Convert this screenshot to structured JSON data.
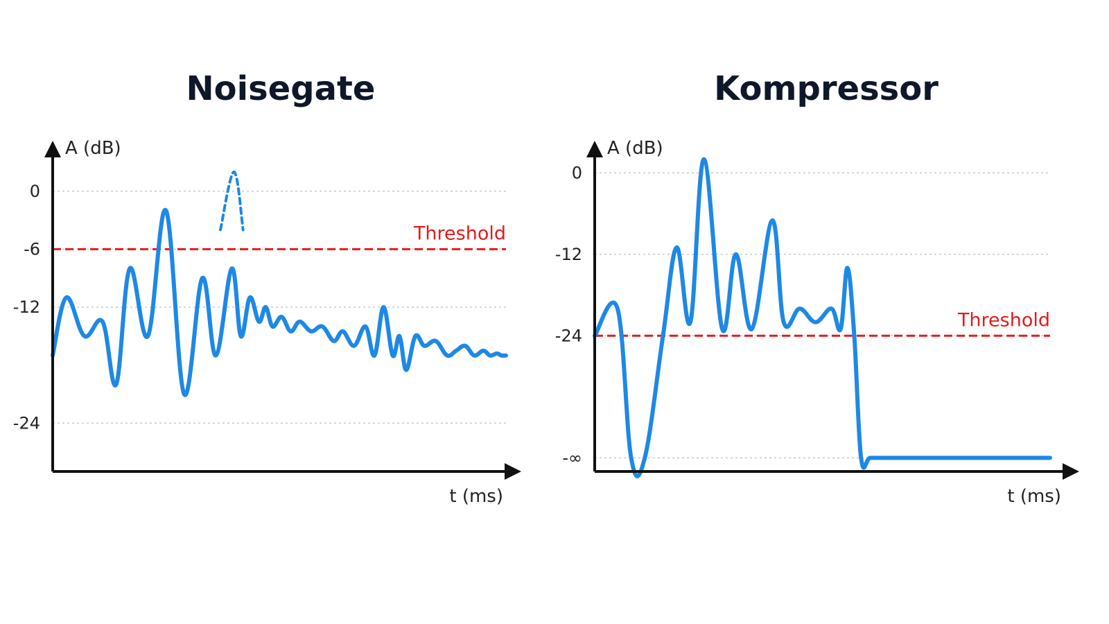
{
  "colors": {
    "signal": "#1e88e5",
    "threshold": "#e31b1b",
    "grid": "#c8c8c8",
    "axis": "#111111"
  },
  "chart_data": [
    {
      "type": "line",
      "title": "Noisegate",
      "xlabel": "t (ms)",
      "ylabel": "A (dB)",
      "ylim": [
        -29,
        4
      ],
      "xlim": [
        0,
        100
      ],
      "y_ticks": [
        {
          "value": 0,
          "label": "0"
        },
        {
          "value": -6,
          "label": "-6"
        },
        {
          "value": -12,
          "label": "-12"
        },
        {
          "value": -24,
          "label": "-24"
        }
      ],
      "grid": true,
      "threshold": {
        "value": -6,
        "label": "Threshold"
      },
      "series": [
        {
          "style": "solid",
          "x": [
            0,
            3,
            7,
            11,
            14,
            17,
            21,
            25,
            29,
            33,
            36,
            39.5,
            41.5,
            43.5,
            45.5,
            47,
            48.5,
            50.5,
            52.5,
            54.5,
            57,
            59.5,
            62,
            64,
            66.5,
            69,
            71,
            73,
            75,
            76.5,
            78,
            80,
            82,
            84.5,
            87,
            89,
            91,
            93,
            95,
            96.5,
            98,
            99,
            100
          ],
          "y": [
            -17,
            -11,
            -15,
            -13.5,
            -20,
            -8,
            -15,
            -2,
            -21,
            -9,
            -17,
            -8,
            -15,
            -11,
            -13.5,
            -12,
            -14,
            -13,
            -14.5,
            -13.5,
            -14.5,
            -14,
            -15.5,
            -14.5,
            -16,
            -14,
            -17,
            -12,
            -17,
            -15,
            -18.5,
            -15,
            -16,
            -15.5,
            -17,
            -16.5,
            -16,
            -17,
            -16.5,
            -17,
            -16.8,
            -17,
            -17
          ]
        },
        {
          "style": "dashed",
          "x": [
            37,
            40,
            42
          ],
          "y": [
            -4,
            2,
            -4
          ]
        }
      ]
    },
    {
      "type": "line",
      "title": "Kompressor",
      "xlabel": "t (ms)",
      "ylabel": "A (dB)",
      "ylim": [
        -44,
        3
      ],
      "xlim": [
        0,
        100
      ],
      "y_ticks": [
        {
          "value": 0,
          "label": "0"
        },
        {
          "value": -12,
          "label": "-12"
        },
        {
          "value": -24,
          "label": "-24"
        },
        {
          "value": -42,
          "label": "-∞"
        }
      ],
      "grid": true,
      "threshold": {
        "value": -24,
        "label": "Threshold"
      },
      "series": [
        {
          "style": "solid",
          "x": [
            0,
            5,
            8,
            11,
            15,
            18,
            21,
            24,
            28,
            31,
            34.5,
            39,
            41.5,
            45,
            48.5,
            52,
            54,
            55.5,
            57,
            58.5,
            60.5,
            64,
            67.5,
            70,
            75,
            80,
            85,
            100
          ],
          "y": [
            -24,
            -20,
            -42,
            -42,
            -24,
            -11,
            -22,
            2,
            -23,
            -12,
            -23,
            -7,
            -22,
            -20,
            -22,
            -20,
            -23,
            -14,
            -24,
            -42,
            -42,
            -42,
            -42,
            -42,
            -42,
            -42,
            -42,
            -42
          ]
        }
      ]
    }
  ]
}
